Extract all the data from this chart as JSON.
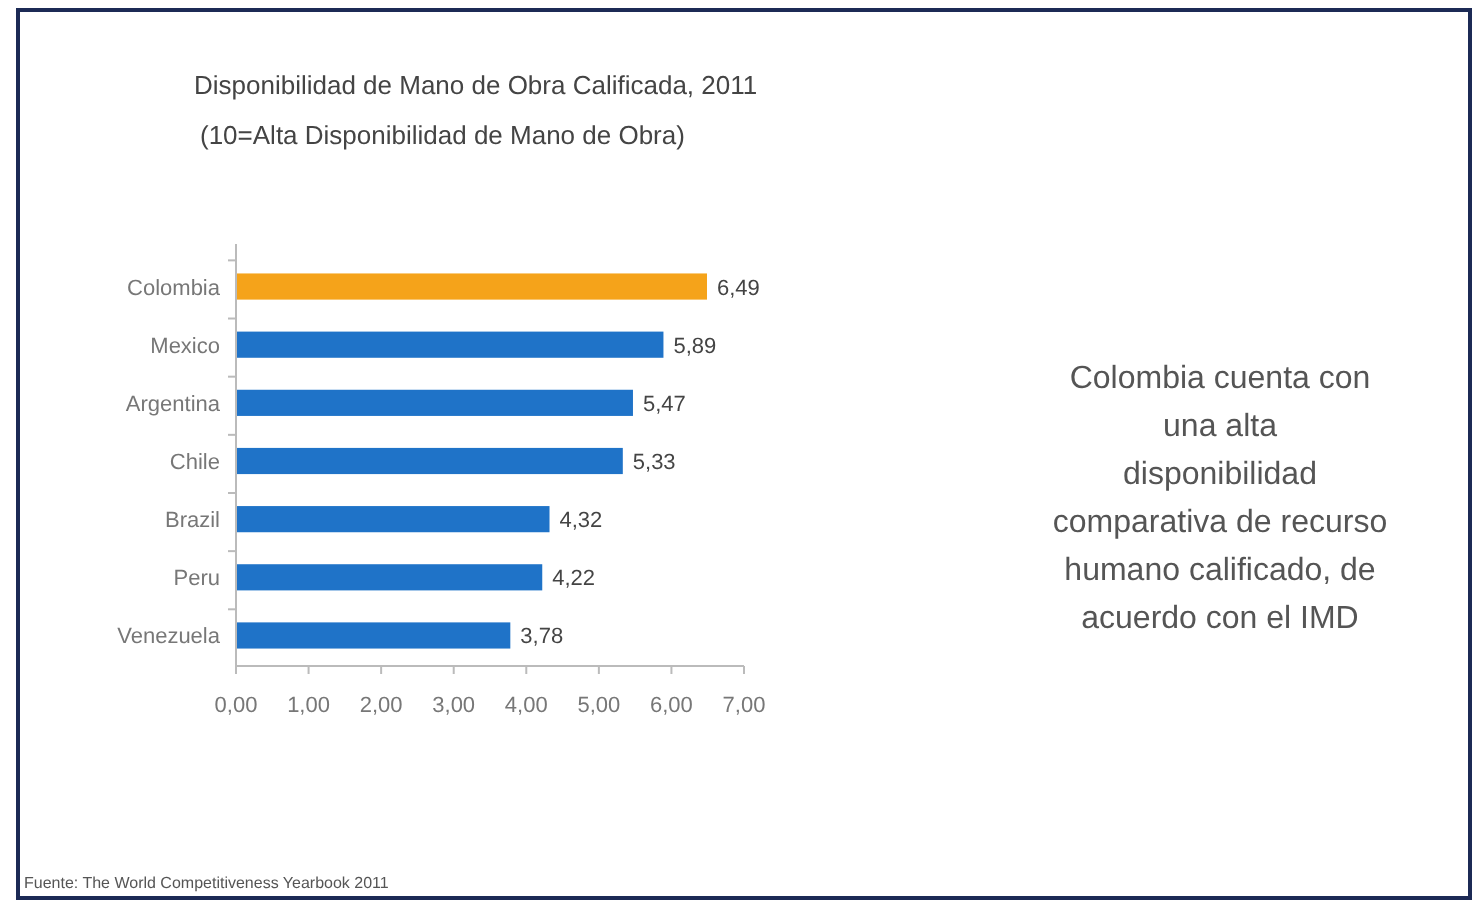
{
  "chart_data": {
    "type": "bar",
    "orientation": "horizontal",
    "title": "Disponibilidad de Mano de Obra Calificada, 2011",
    "subtitle": "(10=Alta Disponibilidad de Mano de Obra)",
    "categories": [
      "Colombia",
      "Mexico",
      "Argentina",
      "Chile",
      "Brazil",
      "Peru",
      "Venezuela"
    ],
    "values": [
      6.49,
      5.89,
      5.47,
      5.33,
      4.32,
      4.22,
      3.78
    ],
    "value_labels": [
      "6,49",
      "5,89",
      "5,47",
      "5,33",
      "4,32",
      "4,22",
      "3,78"
    ],
    "colors": [
      "#f5a31a",
      "#1f73c8",
      "#1f73c8",
      "#1f73c8",
      "#1f73c8",
      "#1f73c8",
      "#1f73c8"
    ],
    "xlim": [
      0,
      7
    ],
    "xticks": [
      {
        "value": 0,
        "label": "0,00"
      },
      {
        "value": 1,
        "label": "1,00"
      },
      {
        "value": 2,
        "label": "2,00"
      },
      {
        "value": 3,
        "label": "3,00"
      },
      {
        "value": 4,
        "label": "4,00"
      },
      {
        "value": 5,
        "label": "5,00"
      },
      {
        "value": 6,
        "label": "6,00"
      },
      {
        "value": 7,
        "label": "7,00"
      }
    ],
    "grid": false,
    "annotations": [
      "Colombia cuenta con una alta disponibilidad comparativa de recurso humano calificado, de acuerdo con el IMD",
      "Fuente: The World Competitiveness Yearbook 2011"
    ]
  }
}
